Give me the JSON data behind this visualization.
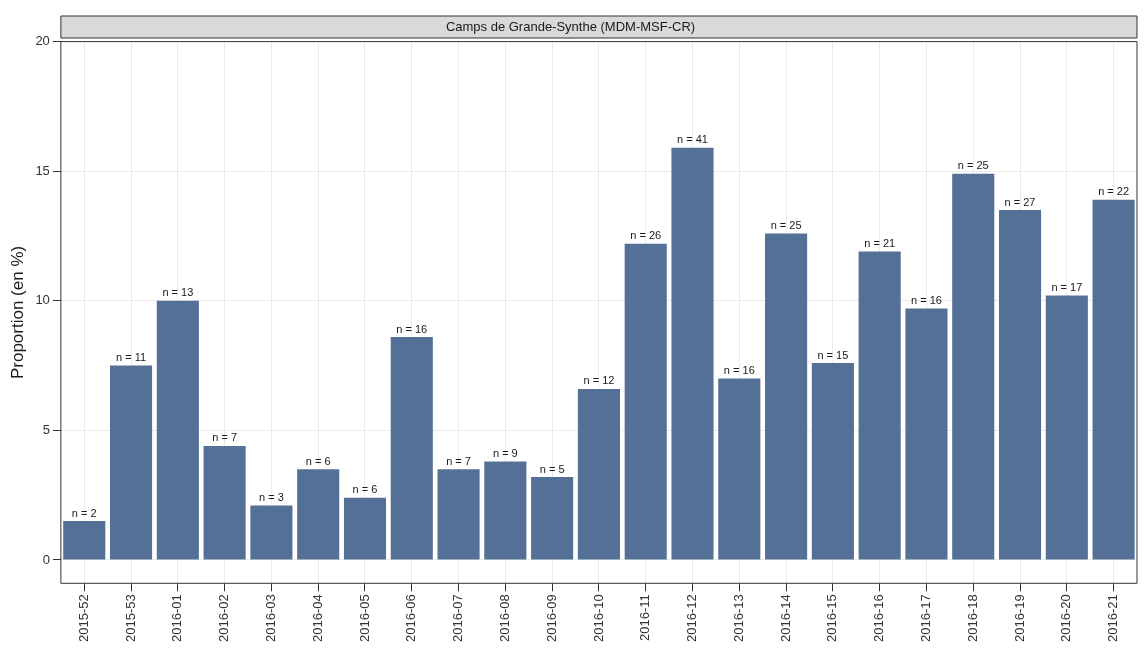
{
  "chart_data": {
    "type": "bar",
    "title": "Camps de Grande-Synthe (MDM-MSF-CR)",
    "ylabel": "Proportion (en %)",
    "categories": [
      "2015-52",
      "2015-53",
      "2016-01",
      "2016-02",
      "2016-03",
      "2016-04",
      "2016-05",
      "2016-06",
      "2016-07",
      "2016-08",
      "2016-09",
      "2016-10",
      "2016-11",
      "2016-12",
      "2016-13",
      "2016-14",
      "2016-15",
      "2016-16",
      "2016-17",
      "2016-18",
      "2016-19",
      "2016-20",
      "2016-21"
    ],
    "values": [
      1.5,
      7.5,
      10.0,
      4.4,
      2.1,
      3.5,
      2.4,
      8.6,
      3.5,
      3.8,
      3.2,
      6.6,
      12.2,
      15.9,
      7.0,
      12.6,
      7.6,
      11.9,
      9.7,
      14.9,
      13.5,
      10.2,
      13.9
    ],
    "annotations": [
      {
        "text": "n = 2",
        "x": "2015-52",
        "y": 1.5
      },
      {
        "text": "n = 11",
        "x": "2015-53",
        "y": 7.5
      },
      {
        "text": "n = 13",
        "x": "2016-01",
        "y": 10.0
      },
      {
        "text": "n = 7",
        "x": "2016-02",
        "y": 4.4
      },
      {
        "text": "n = 3",
        "x": "2016-03",
        "y": 2.1
      },
      {
        "text": "n = 6",
        "x": "2016-04",
        "y": 3.5
      },
      {
        "text": "n = 6",
        "x": "2016-05",
        "y": 2.4
      },
      {
        "text": "n = 16",
        "x": "2016-06",
        "y": 8.6
      },
      {
        "text": "n = 7",
        "x": "2016-07",
        "y": 3.5
      },
      {
        "text": "n = 9",
        "x": "2016-08",
        "y": 3.8
      },
      {
        "text": "n = 5",
        "x": "2016-09",
        "y": 3.2
      },
      {
        "text": "n = 12",
        "x": "2016-10",
        "y": 6.6
      },
      {
        "text": "n = 26",
        "x": "2016-11",
        "y": 12.2
      },
      {
        "text": "n = 41",
        "x": "2016-12",
        "y": 15.9
      },
      {
        "text": "n = 16",
        "x": "2016-13",
        "y": 7.0
      },
      {
        "text": "n = 25",
        "x": "2016-14",
        "y": 12.6
      },
      {
        "text": "n = 15",
        "x": "2016-15",
        "y": 7.6
      },
      {
        "text": "n = 21",
        "x": "2016-16",
        "y": 11.9
      },
      {
        "text": "n = 16",
        "x": "2016-17",
        "y": 9.7
      },
      {
        "text": "n = 25",
        "x": "2016-18",
        "y": 14.9
      },
      {
        "text": "n = 27",
        "x": "2016-19",
        "y": 13.5
      },
      {
        "text": "n = 17",
        "x": "2016-20",
        "y": 10.2
      },
      {
        "text": "n = 22",
        "x": "2016-21",
        "y": 13.9
      }
    ],
    "color": "#557096",
    "ylim": [
      -0.9,
      20
    ],
    "yticks": [
      0,
      5,
      10,
      15,
      20
    ],
    "grid": true
  }
}
